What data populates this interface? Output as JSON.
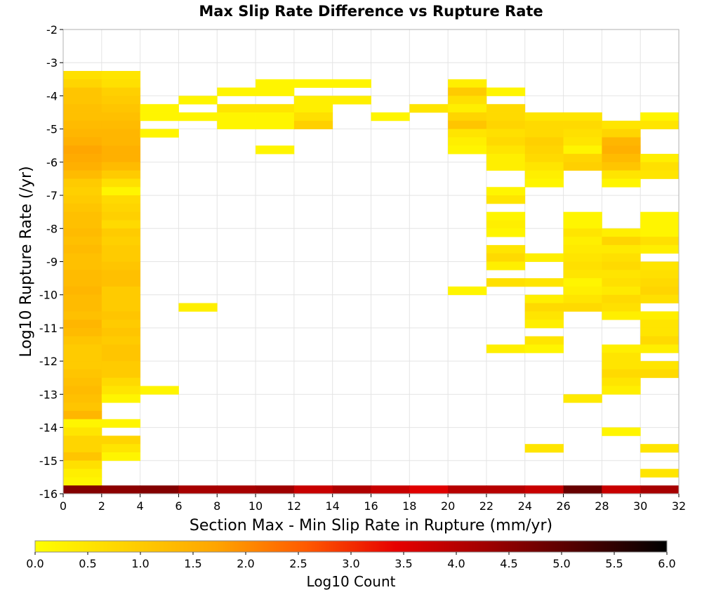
{
  "chart_data": {
    "type": "heatmap",
    "title": "Max Slip Rate Difference vs Rupture Rate",
    "xlabel": "Section Max - Min Slip Rate in Rupture (mm/yr)",
    "ylabel": "Log10 Rupture Rate (/yr)",
    "xlim": [
      0,
      32
    ],
    "ylim": [
      -16,
      -2
    ],
    "xticks": [
      "0",
      "2",
      "4",
      "6",
      "8",
      "10",
      "12",
      "14",
      "16",
      "18",
      "20",
      "22",
      "24",
      "26",
      "28",
      "30",
      "32"
    ],
    "yticks": [
      "-2",
      "-3",
      "-4",
      "-5",
      "-6",
      "-7",
      "-8",
      "-9",
      "-10",
      "-11",
      "-12",
      "-13",
      "-14",
      "-15",
      "-16"
    ],
    "bin_width_x": 2,
    "bin_height_y": 0.25,
    "grid": true,
    "colorbar": {
      "label": "Log10 Count",
      "min": 0,
      "max": 6,
      "ticks": [
        "0.0",
        "0.5",
        "1.0",
        "1.5",
        "2.0",
        "2.5",
        "3.0",
        "3.5",
        "4.0",
        "4.5",
        "5.0",
        "5.5",
        "6.0"
      ],
      "colors": [
        "#ffff00",
        "#ffd200",
        "#ffa500",
        "#ff5a00",
        "#e60000",
        "#a00000",
        "#500000",
        "#000000"
      ]
    },
    "cells": [
      [
        0,
        -3.5,
        0.6
      ],
      [
        0,
        -3.75,
        0.8
      ],
      [
        0,
        -4.0,
        1.1
      ],
      [
        0,
        -4.25,
        1.1
      ],
      [
        0,
        -4.5,
        1.2
      ],
      [
        0,
        -4.75,
        1.2
      ],
      [
        0,
        -5.0,
        1.3
      ],
      [
        0,
        -5.25,
        1.4
      ],
      [
        0,
        -5.5,
        1.5
      ],
      [
        0,
        -5.75,
        1.7
      ],
      [
        0,
        -6.0,
        1.6
      ],
      [
        0,
        -6.25,
        1.5
      ],
      [
        0,
        -6.5,
        1.3
      ],
      [
        0,
        -6.75,
        1.0
      ],
      [
        0,
        -7.0,
        0.9
      ],
      [
        0,
        -7.25,
        1.0
      ],
      [
        0,
        -7.5,
        1.1
      ],
      [
        0,
        -7.75,
        1.2
      ],
      [
        0,
        -8.0,
        1.2
      ],
      [
        0,
        -8.25,
        1.3
      ],
      [
        0,
        -8.5,
        1.2
      ],
      [
        0,
        -8.75,
        1.3
      ],
      [
        0,
        -9.0,
        1.2
      ],
      [
        0,
        -9.25,
        1.2
      ],
      [
        0,
        -9.5,
        1.3
      ],
      [
        0,
        -9.75,
        1.3
      ],
      [
        0,
        -10.0,
        1.4
      ],
      [
        0,
        -10.25,
        1.3
      ],
      [
        0,
        -10.5,
        1.3
      ],
      [
        0,
        -10.75,
        1.2
      ],
      [
        0,
        -11.0,
        1.4
      ],
      [
        0,
        -11.25,
        1.3
      ],
      [
        0,
        -11.5,
        1.1
      ],
      [
        0,
        -11.75,
        1.0
      ],
      [
        0,
        -12.0,
        1.0
      ],
      [
        0,
        -12.25,
        1.0
      ],
      [
        0,
        -12.5,
        1.1
      ],
      [
        0,
        -12.75,
        1.2
      ],
      [
        0,
        -13.0,
        1.3
      ],
      [
        0,
        -13.25,
        1.2
      ],
      [
        0,
        -13.5,
        1.1
      ],
      [
        0,
        -13.75,
        1.4
      ],
      [
        0,
        -14.0,
        0.2
      ],
      [
        0,
        -14.25,
        0.5
      ],
      [
        0,
        -14.5,
        0.8
      ],
      [
        0,
        -14.75,
        0.8
      ],
      [
        0,
        -15.0,
        1.1
      ],
      [
        0,
        -15.25,
        0.6
      ],
      [
        0,
        -15.5,
        0.3
      ],
      [
        0,
        -15.75,
        0.2
      ],
      [
        2,
        -3.5,
        0.5
      ],
      [
        2,
        -3.75,
        0.6
      ],
      [
        2,
        -4.0,
        0.9
      ],
      [
        2,
        -4.25,
        1.0
      ],
      [
        2,
        -4.5,
        1.1
      ],
      [
        2,
        -4.75,
        1.2
      ],
      [
        2,
        -5.0,
        1.3
      ],
      [
        2,
        -5.25,
        1.4
      ],
      [
        2,
        -5.5,
        1.4
      ],
      [
        2,
        -5.75,
        1.5
      ],
      [
        2,
        -6.0,
        1.5
      ],
      [
        2,
        -6.25,
        1.3
      ],
      [
        2,
        -6.5,
        1.0
      ],
      [
        2,
        -6.75,
        0.6
      ],
      [
        2,
        -7.0,
        0.2
      ],
      [
        2,
        -7.25,
        0.7
      ],
      [
        2,
        -7.5,
        0.8
      ],
      [
        2,
        -7.75,
        0.9
      ],
      [
        2,
        -8.0,
        0.7
      ],
      [
        2,
        -8.25,
        1.0
      ],
      [
        2,
        -8.5,
        0.9
      ],
      [
        2,
        -8.75,
        1.0
      ],
      [
        2,
        -9.0,
        1.0
      ],
      [
        2,
        -9.25,
        1.1
      ],
      [
        2,
        -9.5,
        1.2
      ],
      [
        2,
        -9.75,
        1.2
      ],
      [
        2,
        -10.0,
        1.0
      ],
      [
        2,
        -10.25,
        1.0
      ],
      [
        2,
        -10.5,
        1.0
      ],
      [
        2,
        -10.75,
        1.1
      ],
      [
        2,
        -11.0,
        1.0
      ],
      [
        2,
        -11.25,
        1.1
      ],
      [
        2,
        -11.5,
        1.0
      ],
      [
        2,
        -11.75,
        1.1
      ],
      [
        2,
        -12.0,
        1.1
      ],
      [
        2,
        -12.25,
        1.0
      ],
      [
        2,
        -12.5,
        1.0
      ],
      [
        2,
        -12.75,
        0.7
      ],
      [
        2,
        -13.0,
        0.5
      ],
      [
        2,
        -13.25,
        0.2
      ],
      [
        2,
        -14.0,
        0.2
      ],
      [
        2,
        -14.5,
        0.8
      ],
      [
        2,
        -14.75,
        0.5
      ],
      [
        2,
        -15.0,
        0.2
      ],
      [
        4,
        -4.5,
        0.2
      ],
      [
        4,
        -4.75,
        0.2
      ],
      [
        4,
        -5.25,
        0.2
      ],
      [
        4,
        -13.0,
        0.2
      ],
      [
        6,
        -4.25,
        0.2
      ],
      [
        6,
        -4.75,
        0.2
      ],
      [
        6,
        -10.5,
        0.3
      ],
      [
        8,
        -4.0,
        0.2
      ],
      [
        8,
        -4.5,
        0.5
      ],
      [
        8,
        -4.75,
        0.2
      ],
      [
        8,
        -5.0,
        0.2
      ],
      [
        10,
        -3.75,
        0.2
      ],
      [
        10,
        -4.0,
        0.2
      ],
      [
        10,
        -4.5,
        0.5
      ],
      [
        10,
        -4.75,
        0.2
      ],
      [
        10,
        -5.0,
        0.2
      ],
      [
        10,
        -5.75,
        0.2
      ],
      [
        12,
        -3.75,
        0.2
      ],
      [
        12,
        -4.25,
        0.3
      ],
      [
        12,
        -4.5,
        0.3
      ],
      [
        12,
        -4.75,
        0.6
      ],
      [
        12,
        -5.0,
        0.9
      ],
      [
        14,
        -3.75,
        0.2
      ],
      [
        14,
        -4.25,
        0.3
      ],
      [
        16,
        -4.75,
        0.2
      ],
      [
        18,
        -4.5,
        0.5
      ],
      [
        20,
        -3.75,
        0.3
      ],
      [
        20,
        -4.0,
        1.0
      ],
      [
        20,
        -4.25,
        0.6
      ],
      [
        20,
        -4.5,
        0.3
      ],
      [
        20,
        -4.75,
        0.8
      ],
      [
        20,
        -5.0,
        1.1
      ],
      [
        20,
        -5.25,
        0.5
      ],
      [
        20,
        -5.5,
        0.3
      ],
      [
        20,
        -5.75,
        0.2
      ],
      [
        20,
        -10.0,
        0.2
      ],
      [
        22,
        -4.0,
        0.2
      ],
      [
        22,
        -4.5,
        0.7
      ],
      [
        22,
        -4.75,
        0.7
      ],
      [
        22,
        -5.0,
        0.8
      ],
      [
        22,
        -5.25,
        0.6
      ],
      [
        22,
        -5.5,
        0.7
      ],
      [
        22,
        -5.75,
        0.5
      ],
      [
        22,
        -6.0,
        0.3
      ],
      [
        22,
        -6.25,
        0.3
      ],
      [
        22,
        -7.0,
        0.2
      ],
      [
        22,
        -7.25,
        0.5
      ],
      [
        22,
        -7.75,
        0.2
      ],
      [
        22,
        -8.0,
        0.3
      ],
      [
        22,
        -8.25,
        0.2
      ],
      [
        22,
        -8.75,
        0.5
      ],
      [
        22,
        -9.0,
        0.7
      ],
      [
        22,
        -9.25,
        0.3
      ],
      [
        22,
        -9.75,
        0.6
      ],
      [
        22,
        -11.75,
        0.3
      ],
      [
        24,
        -4.75,
        0.5
      ],
      [
        24,
        -5.0,
        0.7
      ],
      [
        24,
        -5.25,
        0.7
      ],
      [
        24,
        -5.5,
        0.9
      ],
      [
        24,
        -5.75,
        0.8
      ],
      [
        24,
        -6.0,
        0.7
      ],
      [
        24,
        -6.25,
        0.5
      ],
      [
        24,
        -6.5,
        0.3
      ],
      [
        24,
        -6.75,
        0.2
      ],
      [
        24,
        -9.0,
        0.3
      ],
      [
        24,
        -9.75,
        0.5
      ],
      [
        24,
        -10.25,
        0.3
      ],
      [
        24,
        -10.5,
        0.7
      ],
      [
        24,
        -10.75,
        0.5
      ],
      [
        24,
        -11.0,
        0.3
      ],
      [
        24,
        -11.5,
        0.5
      ],
      [
        24,
        -11.75,
        0.2
      ],
      [
        24,
        -14.75,
        0.5
      ],
      [
        26,
        -4.75,
        0.5
      ],
      [
        26,
        -5.0,
        0.7
      ],
      [
        26,
        -5.25,
        0.6
      ],
      [
        26,
        -5.5,
        0.5
      ],
      [
        26,
        -5.75,
        0.2
      ],
      [
        26,
        -6.0,
        0.8
      ],
      [
        26,
        -6.25,
        0.9
      ],
      [
        26,
        -7.75,
        0.2
      ],
      [
        26,
        -8.0,
        0.2
      ],
      [
        26,
        -8.25,
        0.5
      ],
      [
        26,
        -8.5,
        0.3
      ],
      [
        26,
        -8.75,
        0.4
      ],
      [
        26,
        -9.0,
        0.5
      ],
      [
        26,
        -9.25,
        0.6
      ],
      [
        26,
        -9.5,
        0.5
      ],
      [
        26,
        -9.75,
        0.2
      ],
      [
        26,
        -10.0,
        0.3
      ],
      [
        26,
        -10.25,
        0.5
      ],
      [
        26,
        -10.5,
        0.7
      ],
      [
        26,
        -13.25,
        0.4
      ],
      [
        28,
        -5.0,
        0.5
      ],
      [
        28,
        -5.25,
        0.8
      ],
      [
        28,
        -5.5,
        1.4
      ],
      [
        28,
        -5.75,
        1.5
      ],
      [
        28,
        -6.0,
        1.3
      ],
      [
        28,
        -6.25,
        1.1
      ],
      [
        28,
        -6.5,
        0.5
      ],
      [
        28,
        -6.75,
        0.2
      ],
      [
        28,
        -8.25,
        0.3
      ],
      [
        28,
        -8.5,
        0.8
      ],
      [
        28,
        -8.75,
        0.4
      ],
      [
        28,
        -9.0,
        0.6
      ],
      [
        28,
        -9.25,
        0.7
      ],
      [
        28,
        -9.5,
        0.5
      ],
      [
        28,
        -9.75,
        0.6
      ],
      [
        28,
        -10.0,
        0.4
      ],
      [
        28,
        -10.25,
        0.7
      ],
      [
        28,
        -10.5,
        0.6
      ],
      [
        28,
        -10.75,
        0.3
      ],
      [
        28,
        -11.75,
        0.3
      ],
      [
        28,
        -12.0,
        0.5
      ],
      [
        28,
        -12.25,
        0.5
      ],
      [
        28,
        -12.5,
        0.7
      ],
      [
        28,
        -12.75,
        0.5
      ],
      [
        28,
        -13.0,
        0.3
      ],
      [
        28,
        -14.25,
        0.2
      ],
      [
        30,
        -4.75,
        0.2
      ],
      [
        30,
        -5.0,
        0.5
      ],
      [
        30,
        -6.0,
        0.3
      ],
      [
        30,
        -6.25,
        0.6
      ],
      [
        30,
        -6.5,
        0.5
      ],
      [
        30,
        -7.75,
        0.2
      ],
      [
        30,
        -8.0,
        0.2
      ],
      [
        30,
        -8.25,
        0.2
      ],
      [
        30,
        -8.5,
        0.6
      ],
      [
        30,
        -8.75,
        0.3
      ],
      [
        30,
        -9.25,
        0.5
      ],
      [
        30,
        -9.5,
        0.6
      ],
      [
        30,
        -9.75,
        0.7
      ],
      [
        30,
        -10.0,
        0.8
      ],
      [
        30,
        -10.25,
        0.6
      ],
      [
        30,
        -10.75,
        0.3
      ],
      [
        30,
        -11.0,
        0.5
      ],
      [
        30,
        -11.25,
        0.5
      ],
      [
        30,
        -11.5,
        0.7
      ],
      [
        30,
        -11.75,
        0.3
      ],
      [
        30,
        -12.25,
        0.5
      ],
      [
        30,
        -12.5,
        0.7
      ],
      [
        30,
        -14.75,
        0.5
      ],
      [
        30,
        -15.5,
        0.5
      ]
    ],
    "bottom_row": {
      "y": -16.0,
      "values": [
        4.6,
        4.5,
        4.6,
        4.2,
        4.2,
        4.3,
        3.8,
        4.1,
        3.8,
        3.5,
        4.0,
        4.0,
        3.8,
        4.9,
        3.8,
        4.2
      ]
    }
  }
}
